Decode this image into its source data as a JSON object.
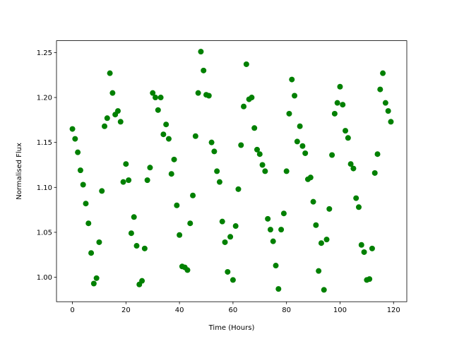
{
  "chart_data": {
    "type": "scatter",
    "xlabel": "Time (Hours)",
    "ylabel": "Normalised Flux",
    "color": "#008000",
    "x": [
      0,
      1,
      2,
      3,
      4,
      5,
      6,
      7,
      8,
      9,
      10,
      11,
      12,
      13,
      14,
      15,
      16,
      17,
      18,
      19,
      20,
      21,
      22,
      23,
      24,
      25,
      26,
      27,
      28,
      29,
      30,
      31,
      32,
      33,
      34,
      35,
      36,
      37,
      38,
      39,
      40,
      41,
      42,
      43,
      44,
      45,
      46,
      47,
      48,
      49,
      50,
      51,
      52,
      53,
      54,
      55,
      56,
      57,
      58,
      59,
      60,
      61,
      62,
      63,
      64,
      65,
      66,
      67,
      68,
      69,
      70,
      71,
      72,
      73,
      74,
      75,
      76,
      77,
      78,
      79,
      80,
      81,
      82,
      83,
      84,
      85,
      86,
      87,
      88,
      89,
      90,
      91,
      92,
      93,
      94,
      95,
      96,
      97,
      98,
      99,
      100,
      101,
      102,
      103,
      104,
      105,
      106,
      107,
      108,
      109,
      110,
      111,
      112,
      113,
      114,
      115,
      116,
      117,
      118,
      119
    ],
    "values": [
      1.165,
      1.154,
      1.139,
      1.119,
      1.103,
      1.082,
      1.06,
      1.027,
      0.993,
      0.999,
      1.039,
      1.096,
      1.168,
      1.177,
      1.227,
      1.205,
      1.181,
      1.185,
      1.173,
      1.106,
      1.126,
      1.108,
      1.049,
      1.067,
      1.035,
      0.992,
      0.996,
      1.032,
      1.108,
      1.122,
      1.205,
      1.2,
      1.186,
      1.2,
      1.159,
      1.17,
      1.154,
      1.115,
      1.131,
      1.08,
      1.047,
      1.012,
      1.011,
      1.008,
      1.06,
      1.091,
      1.157,
      1.205,
      1.251,
      1.23,
      1.203,
      1.202,
      1.15,
      1.14,
      1.118,
      1.106,
      1.062,
      1.039,
      1.006,
      1.045,
      0.997,
      1.057,
      1.098,
      1.147,
      1.19,
      1.237,
      1.198,
      1.2,
      1.166,
      1.142,
      1.137,
      1.125,
      1.118,
      1.065,
      1.053,
      1.04,
      1.013,
      0.987,
      1.053,
      1.071,
      1.118,
      1.182,
      1.22,
      1.202,
      1.151,
      1.168,
      1.146,
      1.138,
      1.109,
      1.111,
      1.084,
      1.058,
      1.007,
      1.038,
      0.986,
      1.042,
      1.076,
      1.136,
      1.182,
      1.194,
      1.212,
      1.192,
      1.163,
      1.155,
      1.126,
      1.121,
      1.088,
      1.078,
      1.036,
      1.028,
      0.997,
      0.998,
      1.032,
      1.116,
      1.137,
      1.209,
      1.227,
      1.194,
      1.185,
      1.173
    ],
    "xlim": [
      -5.95,
      124.95
    ],
    "ylim": [
      0.9728,
      1.2632
    ],
    "xticks": [
      0,
      20,
      40,
      60,
      80,
      100,
      120
    ],
    "yticks": [
      {
        "value": 1.0,
        "label": "1.00"
      },
      {
        "value": 1.05,
        "label": "1.05"
      },
      {
        "value": 1.1,
        "label": "1.10"
      },
      {
        "value": 1.15,
        "label": "1.15"
      },
      {
        "value": 1.2,
        "label": "1.20"
      },
      {
        "value": 1.25,
        "label": "1.25"
      }
    ]
  }
}
